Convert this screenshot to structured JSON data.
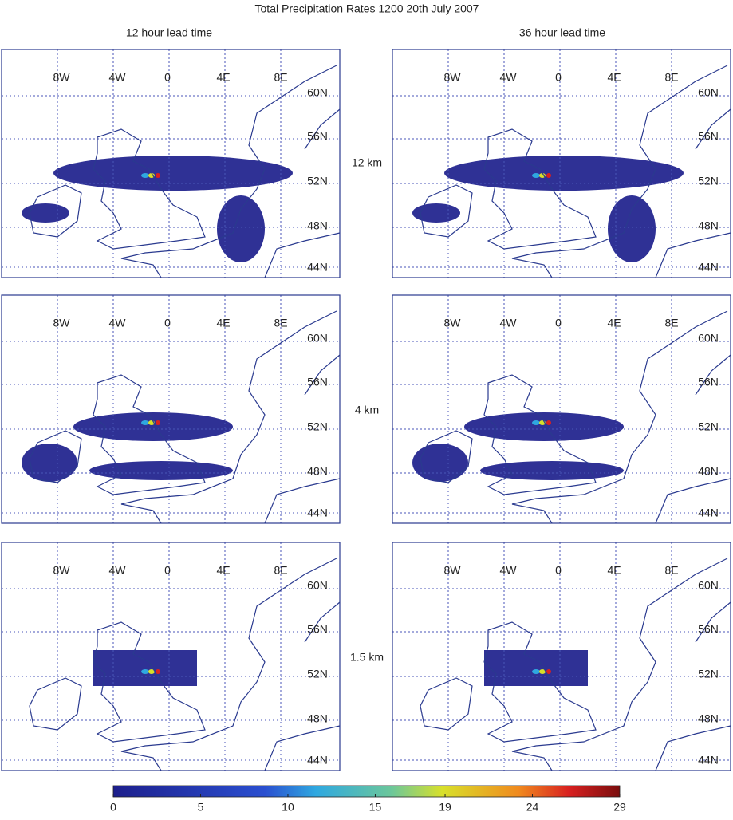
{
  "title": "Total Precipitation Rates 1200 20th July 2007",
  "columns": [
    "12 hour lead time",
    "36 hour lead time"
  ],
  "rows": [
    "12 km",
    "4 km",
    "1.5 km"
  ],
  "longitude_labels": [
    "8W",
    "4W",
    "0",
    "4E",
    "8E"
  ],
  "latitude_labels": [
    "60N",
    "56N",
    "52N",
    "48N",
    "44N"
  ],
  "colorbar": {
    "clim": [
      0,
      29
    ],
    "ticks": [
      0,
      5,
      10,
      15,
      19,
      24,
      29
    ]
  }
}
